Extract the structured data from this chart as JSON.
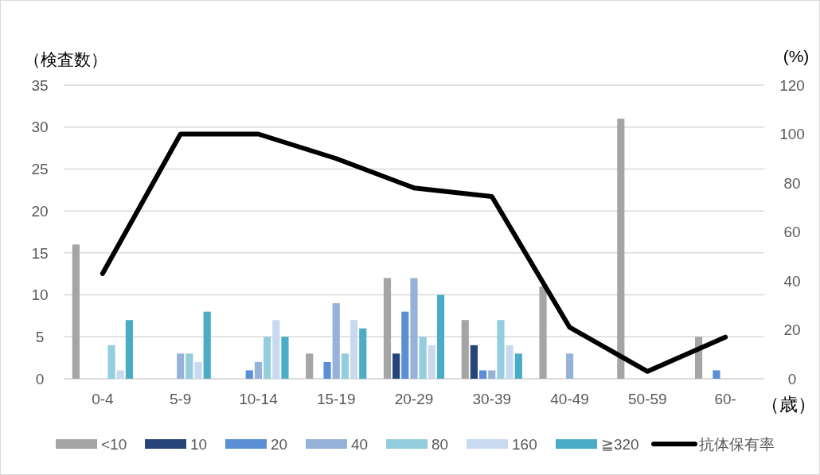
{
  "chart_data": {
    "type": "bar",
    "ylabel": "（検査数）",
    "y2label": "(%)",
    "xlabel": "（歳）",
    "categories": [
      "0-4",
      "5-9",
      "10-14",
      "15-19",
      "20-29",
      "30-39",
      "40-49",
      "50-59",
      "60-"
    ],
    "series": [
      {
        "name": "<10",
        "color": "#a5a5a5",
        "values": [
          16,
          0,
          0,
          3,
          12,
          7,
          11,
          31,
          5
        ]
      },
      {
        "name": "10",
        "color": "#264478",
        "values": [
          0,
          0,
          0,
          0,
          3,
          4,
          0,
          0,
          0
        ]
      },
      {
        "name": "20",
        "color": "#5a8fd6",
        "values": [
          0,
          0,
          1,
          2,
          8,
          1,
          0,
          0,
          1
        ]
      },
      {
        "name": "40",
        "color": "#97b2d8",
        "values": [
          0,
          3,
          2,
          9,
          12,
          1,
          3,
          null,
          0
        ]
      },
      {
        "name": "80",
        "color": "#94cddd",
        "values": [
          4,
          3,
          5,
          3,
          5,
          7,
          0,
          0,
          0
        ]
      },
      {
        "name": "160",
        "color": "#c9daf0",
        "values": [
          1,
          2,
          7,
          7,
          4,
          4,
          0,
          0,
          0
        ]
      },
      {
        "name": "≧320",
        "color": "#4bacc6",
        "values": [
          7,
          8,
          5,
          6,
          10,
          3,
          0,
          0,
          0
        ]
      },
      {
        "name": "抗体保有率",
        "type": "line",
        "axis": "y2",
        "color": "#000000",
        "values": [
          43,
          100,
          100,
          90,
          78,
          74.5,
          21,
          3,
          17
        ]
      }
    ],
    "ylim": [
      0,
      35
    ],
    "yticks": [
      0,
      5,
      10,
      15,
      20,
      25,
      30,
      35
    ],
    "y2lim": [
      0,
      120
    ],
    "y2ticks": [
      0,
      20,
      40,
      60,
      80,
      100,
      120
    ],
    "grid": "y",
    "legend": "bottom"
  }
}
